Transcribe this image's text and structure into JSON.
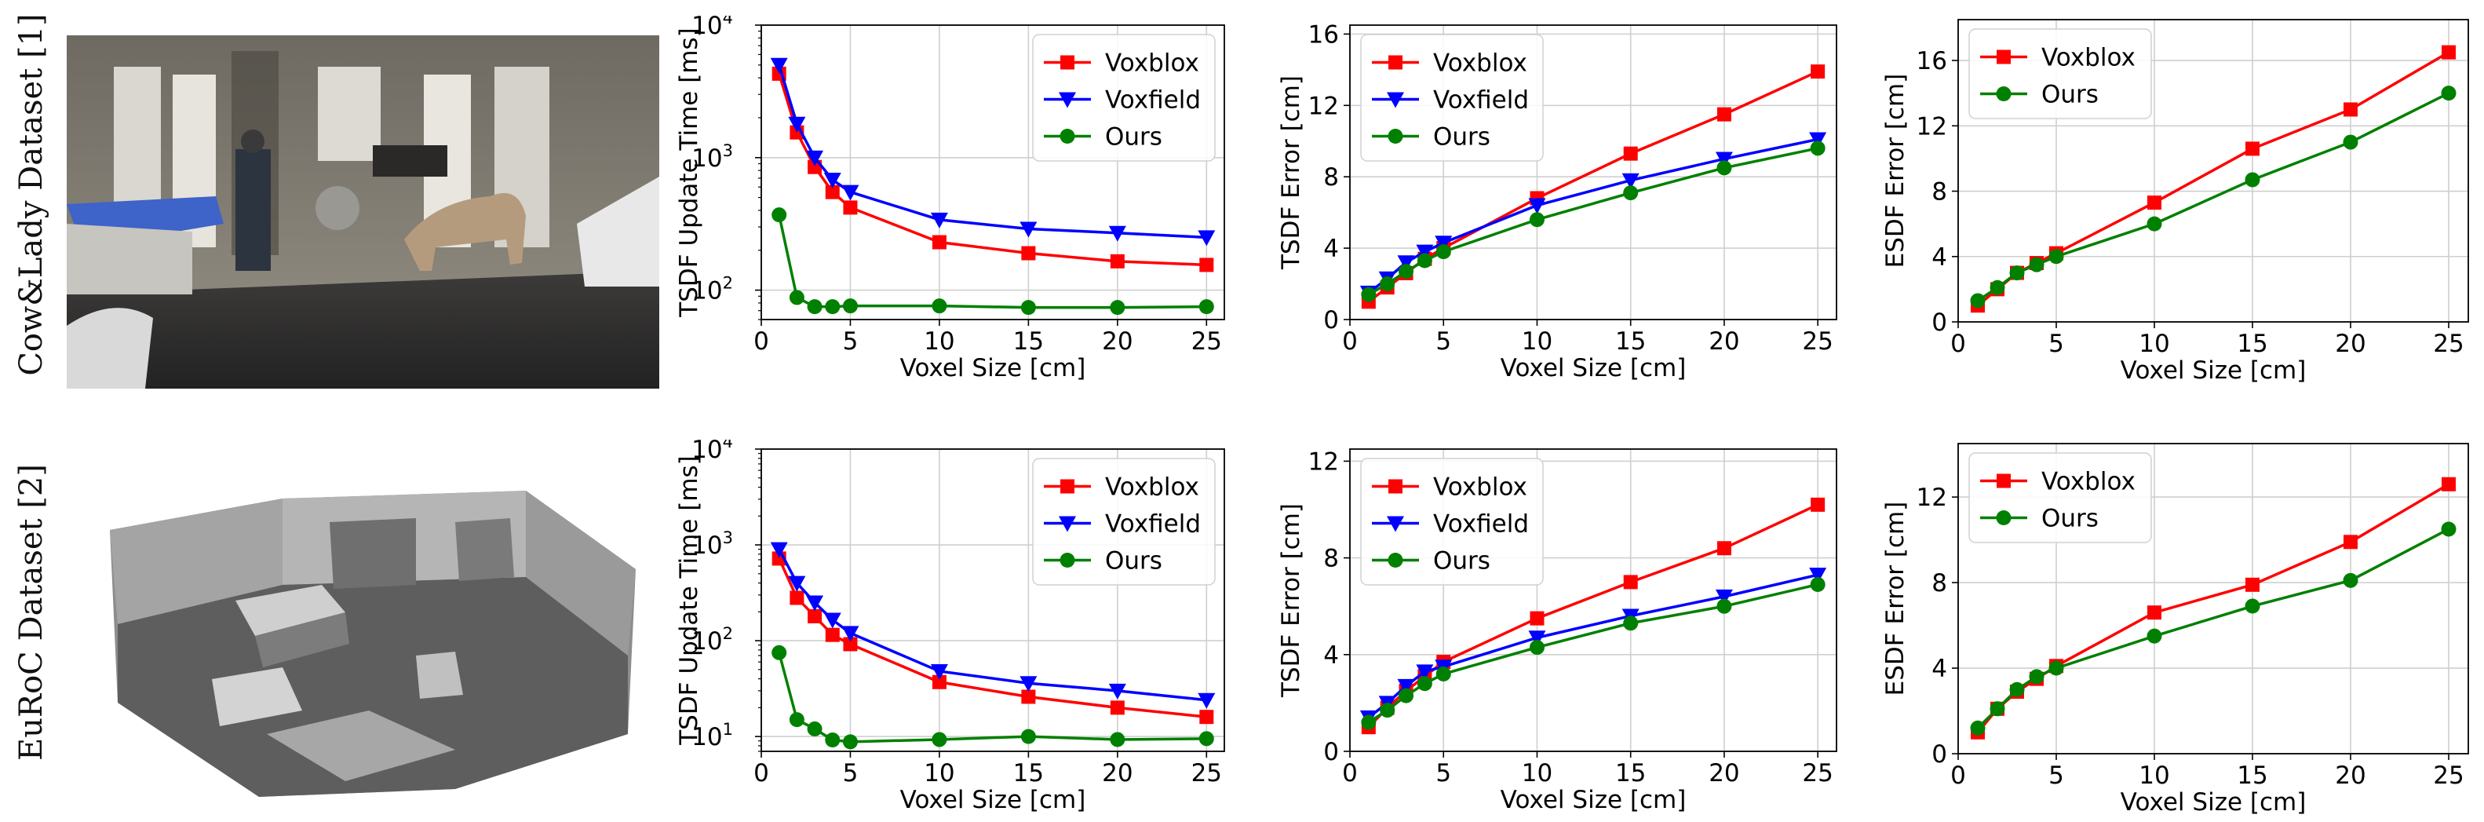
{
  "rows": [
    {
      "label": "Cow&Lady Dataset [1]",
      "image": "Cow&Lady reconstructed scene"
    },
    {
      "label": "EuRoC Dataset [2]",
      "image": "EuRoC reconstructed scene"
    }
  ],
  "colors": {
    "voxblox": "#ff0000",
    "voxfield": "#0000ff",
    "ours": "#008000"
  },
  "chart_data": [
    {
      "id": "cowlady-tsdf-time",
      "type": "line",
      "yscale": "log",
      "xlabel": "Voxel Size [cm]",
      "ylabel": "TSDF Update Time [ms]",
      "xlim": [
        0,
        26
      ],
      "ylim": [
        60,
        10000
      ],
      "xticks": [
        0,
        5,
        10,
        15,
        20,
        25
      ],
      "xtick_labels": [
        "0",
        "5",
        "10",
        "15",
        "20",
        "25"
      ],
      "yticks": [
        100,
        1000,
        10000
      ],
      "ytick_labels": [
        [
          "10",
          "2"
        ],
        [
          "10",
          "3"
        ],
        [
          "10",
          "4"
        ]
      ],
      "legend_position": "top-right",
      "x": [
        1,
        2,
        3,
        4,
        5,
        10,
        15,
        20,
        25
      ],
      "series": [
        {
          "name": "Voxblox",
          "key": "voxblox",
          "marker": "square",
          "values": [
            4300,
            1550,
            850,
            550,
            420,
            230,
            190,
            165,
            155
          ]
        },
        {
          "name": "Voxfield",
          "key": "voxfield",
          "marker": "triangle-down",
          "values": [
            5000,
            1800,
            1000,
            680,
            550,
            340,
            290,
            270,
            250
          ]
        },
        {
          "name": "Ours",
          "key": "ours",
          "marker": "circle",
          "values": [
            370,
            88,
            75,
            75,
            76,
            76,
            74,
            74,
            75
          ]
        }
      ]
    },
    {
      "id": "cowlady-tsdf-error",
      "type": "line",
      "yscale": "linear",
      "xlabel": "Voxel Size [cm]",
      "ylabel": "TSDF Error [cm]",
      "xlim": [
        0,
        26
      ],
      "ylim": [
        0,
        16.5
      ],
      "xticks": [
        0,
        5,
        10,
        15,
        20,
        25
      ],
      "xtick_labels": [
        "0",
        "5",
        "10",
        "15",
        "20",
        "25"
      ],
      "yticks": [
        0,
        4,
        8,
        12,
        16
      ],
      "ytick_labels": [
        "0",
        "4",
        "8",
        "12",
        "16"
      ],
      "legend_position": "top-left",
      "x": [
        1,
        2,
        3,
        4,
        5,
        10,
        15,
        20,
        25
      ],
      "series": [
        {
          "name": "Voxblox",
          "key": "voxblox",
          "marker": "square",
          "values": [
            1.0,
            1.8,
            2.6,
            3.4,
            4.0,
            6.8,
            9.3,
            11.5,
            13.9
          ]
        },
        {
          "name": "Voxfield",
          "key": "voxfield",
          "marker": "triangle-down",
          "values": [
            1.5,
            2.3,
            3.2,
            3.8,
            4.3,
            6.4,
            7.8,
            9.0,
            10.1
          ]
        },
        {
          "name": "Ours",
          "key": "ours",
          "marker": "circle",
          "values": [
            1.4,
            2.0,
            2.7,
            3.3,
            3.8,
            5.6,
            7.1,
            8.5,
            9.6
          ]
        }
      ]
    },
    {
      "id": "cowlady-esdf-error",
      "type": "line",
      "yscale": "linear",
      "xlabel": "Voxel Size [cm]",
      "ylabel": "ESDF Error [cm]",
      "xlim": [
        0,
        26
      ],
      "ylim": [
        0,
        18.5
      ],
      "xticks": [
        0,
        5,
        10,
        15,
        20,
        25
      ],
      "xtick_labels": [
        "0",
        "5",
        "10",
        "15",
        "20",
        "25"
      ],
      "yticks": [
        0,
        4,
        8,
        12,
        16
      ],
      "ytick_labels": [
        "0",
        "4",
        "8",
        "12",
        "16"
      ],
      "legend_position": "top-left",
      "x": [
        1,
        2,
        3,
        4,
        5,
        10,
        15,
        20,
        25
      ],
      "series": [
        {
          "name": "Voxblox",
          "key": "voxblox",
          "marker": "square",
          "values": [
            1.0,
            2.0,
            3.0,
            3.6,
            4.2,
            7.3,
            10.6,
            13.0,
            16.5
          ]
        },
        {
          "name": "Ours",
          "key": "ours",
          "marker": "circle",
          "values": [
            1.3,
            2.1,
            3.0,
            3.5,
            4.0,
            6.0,
            8.7,
            11.0,
            14.0
          ]
        }
      ]
    },
    {
      "id": "euroc-tsdf-time",
      "type": "line",
      "yscale": "log",
      "xlabel": "Voxel Size [cm]",
      "ylabel": "TSDF Update Time [ms]",
      "xlim": [
        0,
        26
      ],
      "ylim": [
        7,
        10000
      ],
      "xticks": [
        0,
        5,
        10,
        15,
        20,
        25
      ],
      "xtick_labels": [
        "0",
        "5",
        "10",
        "15",
        "20",
        "25"
      ],
      "yticks": [
        10,
        100,
        1000,
        10000
      ],
      "ytick_labels": [
        [
          "10",
          "1"
        ],
        [
          "10",
          "2"
        ],
        [
          "10",
          "3"
        ],
        [
          "10",
          "4"
        ]
      ],
      "legend_position": "top-right",
      "x": [
        1,
        2,
        3,
        4,
        5,
        10,
        15,
        20,
        25
      ],
      "series": [
        {
          "name": "Voxblox",
          "key": "voxblox",
          "marker": "square",
          "values": [
            720,
            280,
            180,
            115,
            92,
            37,
            26,
            20,
            16
          ]
        },
        {
          "name": "Voxfield",
          "key": "voxfield",
          "marker": "triangle-down",
          "values": [
            900,
            400,
            250,
            165,
            120,
            48,
            36,
            30,
            24
          ]
        },
        {
          "name": "Ours",
          "key": "ours",
          "marker": "circle",
          "values": [
            75,
            15,
            12,
            9.2,
            8.8,
            9.3,
            10,
            9.3,
            9.5
          ]
        }
      ]
    },
    {
      "id": "euroc-tsdf-error",
      "type": "line",
      "yscale": "linear",
      "xlabel": "Voxel Size [cm]",
      "ylabel": "TSDF Error [cm]",
      "xlim": [
        0,
        26
      ],
      "ylim": [
        0,
        12.5
      ],
      "xticks": [
        0,
        5,
        10,
        15,
        20,
        25
      ],
      "xtick_labels": [
        "0",
        "5",
        "10",
        "15",
        "20",
        "25"
      ],
      "yticks": [
        0,
        4,
        8,
        12
      ],
      "ytick_labels": [
        "0",
        "4",
        "8",
        "12"
      ],
      "legend_position": "top-left",
      "x": [
        1,
        2,
        3,
        4,
        5,
        10,
        15,
        20,
        25
      ],
      "series": [
        {
          "name": "Voxblox",
          "key": "voxblox",
          "marker": "square",
          "values": [
            1.0,
            1.8,
            2.5,
            3.1,
            3.7,
            5.5,
            7.0,
            8.4,
            10.2
          ]
        },
        {
          "name": "Voxfield",
          "key": "voxfield",
          "marker": "triangle-down",
          "values": [
            1.4,
            2.0,
            2.7,
            3.3,
            3.5,
            4.7,
            5.6,
            6.4,
            7.3
          ]
        },
        {
          "name": "Ours",
          "key": "ours",
          "marker": "circle",
          "values": [
            1.2,
            1.7,
            2.3,
            2.8,
            3.2,
            4.3,
            5.3,
            6.0,
            6.9
          ]
        }
      ]
    },
    {
      "id": "euroc-esdf-error",
      "type": "line",
      "yscale": "linear",
      "xlabel": "Voxel Size [cm]",
      "ylabel": "ESDF Error [cm]",
      "xlim": [
        0,
        26
      ],
      "ylim": [
        0,
        14.5
      ],
      "xticks": [
        0,
        5,
        10,
        15,
        20,
        25
      ],
      "xtick_labels": [
        "0",
        "5",
        "10",
        "15",
        "20",
        "25"
      ],
      "yticks": [
        0,
        4,
        8,
        12
      ],
      "ytick_labels": [
        "0",
        "4",
        "8",
        "12"
      ],
      "legend_position": "top-left",
      "x": [
        1,
        2,
        3,
        4,
        5,
        10,
        15,
        20,
        25
      ],
      "series": [
        {
          "name": "Voxblox",
          "key": "voxblox",
          "marker": "square",
          "values": [
            1.0,
            2.1,
            2.9,
            3.5,
            4.1,
            6.6,
            7.9,
            9.9,
            12.6
          ]
        },
        {
          "name": "Ours",
          "key": "ours",
          "marker": "circle",
          "values": [
            1.2,
            2.1,
            3.0,
            3.6,
            4.0,
            5.5,
            6.9,
            8.1,
            10.5
          ]
        }
      ]
    }
  ]
}
